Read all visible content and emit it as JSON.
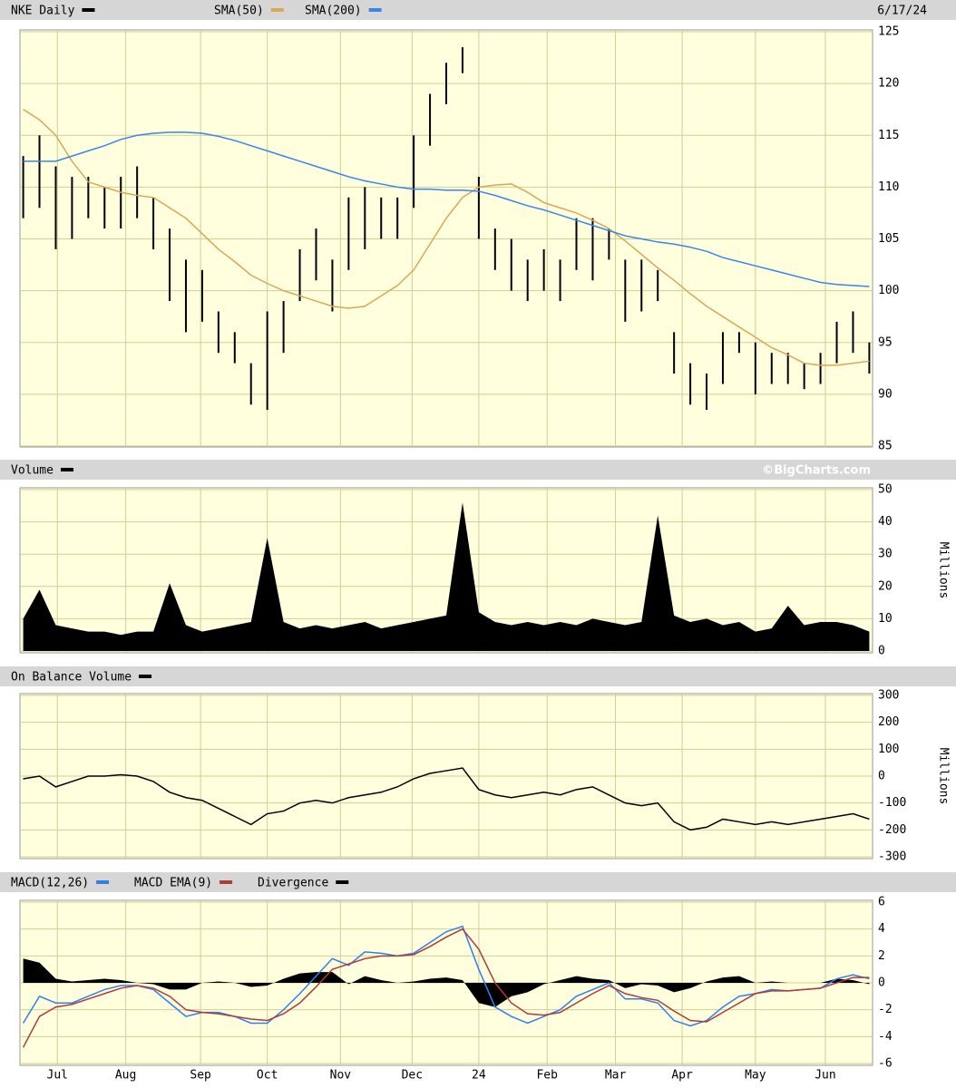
{
  "chart_data": [
    {
      "type": "ohlc",
      "title": "NKE Daily",
      "date": "6/17/24",
      "x": [
        0,
        1,
        2,
        3,
        4,
        5,
        6,
        7,
        8,
        9,
        10,
        11,
        12,
        13,
        14,
        15,
        16,
        17,
        18,
        19,
        20,
        21,
        22,
        23,
        24,
        25,
        26,
        27,
        28,
        29,
        30,
        31,
        32,
        33,
        34,
        35,
        36,
        37,
        38,
        39,
        40,
        41,
        42,
        43,
        44,
        45,
        46,
        47,
        48,
        49,
        50,
        51,
        52
      ],
      "xlim": [
        -0.2,
        52.2
      ],
      "ylim": [
        85,
        125
      ],
      "yticks": [
        85,
        90,
        95,
        100,
        105,
        110,
        115,
        120,
        125
      ],
      "grid": true,
      "series": [
        {
          "name": "NKE Daily",
          "color": "#000000",
          "high": [
            113,
            115,
            112,
            111,
            111,
            110,
            111,
            112,
            109,
            106,
            103,
            102,
            98,
            96,
            93,
            98,
            99,
            104,
            106,
            103,
            109,
            110,
            109,
            109,
            115,
            119,
            122,
            123.5,
            111,
            106,
            105,
            103,
            104,
            103,
            107,
            107,
            106,
            103,
            103,
            102,
            96,
            93,
            92,
            96,
            96,
            95,
            94,
            94,
            93,
            94,
            97,
            98,
            95
          ],
          "low": [
            107,
            108,
            104,
            105,
            107,
            106,
            106,
            107,
            104,
            99,
            96,
            97,
            94,
            93,
            89,
            88.5,
            94,
            99,
            101,
            98,
            102,
            104,
            105,
            105,
            108,
            114,
            118,
            121,
            105,
            102,
            100,
            99,
            100,
            99,
            102,
            101,
            103,
            97,
            98,
            99,
            92,
            89,
            88.5,
            91,
            94,
            90,
            91,
            91,
            90.5,
            91,
            93,
            94,
            92
          ]
        },
        {
          "name": "SMA(50)",
          "color": "#d9a75a",
          "values": [
            117.5,
            116.5,
            115,
            112.5,
            110.5,
            110,
            109.5,
            109.2,
            109,
            108,
            107,
            105.5,
            104,
            102.8,
            101.5,
            100.7,
            100,
            99.5,
            99,
            98.5,
            98.3,
            98.5,
            99.5,
            100.5,
            102,
            104.5,
            107,
            109,
            110,
            110.2,
            110.3,
            109.5,
            108.5,
            108,
            107.5,
            106.8,
            106,
            104.8,
            103.5,
            102.2,
            101,
            99.7,
            98.5,
            97.5,
            96.5,
            95.5,
            94.5,
            93.8,
            93,
            92.8,
            92.8,
            93,
            93.2
          ]
        },
        {
          "name": "SMA(200)",
          "color": "#3a86e8",
          "values": [
            112.5,
            112.5,
            112.5,
            113,
            113.5,
            114,
            114.6,
            115,
            115.2,
            115.3,
            115.3,
            115.2,
            114.9,
            114.5,
            114,
            113.5,
            113,
            112.5,
            112,
            111.5,
            111,
            110.6,
            110.3,
            110,
            109.8,
            109.8,
            109.7,
            109.7,
            109.6,
            109.2,
            108.7,
            108.2,
            107.8,
            107.3,
            106.8,
            106.3,
            105.8,
            105.3,
            105,
            104.7,
            104.5,
            104.2,
            103.8,
            103.2,
            102.8,
            102.4,
            102,
            101.6,
            101.2,
            100.8,
            100.6,
            100.5,
            100.4
          ]
        }
      ]
    },
    {
      "type": "area",
      "source": "©BigCharts.com",
      "ylabel": "Millions",
      "x": [
        0,
        1,
        2,
        3,
        4,
        5,
        6,
        7,
        8,
        9,
        10,
        11,
        12,
        13,
        14,
        15,
        16,
        17,
        18,
        19,
        20,
        21,
        22,
        23,
        24,
        25,
        26,
        27,
        28,
        29,
        30,
        31,
        32,
        33,
        34,
        35,
        36,
        37,
        38,
        39,
        40,
        41,
        42,
        43,
        44,
        45,
        46,
        47,
        48,
        49,
        50,
        51,
        52
      ],
      "xlim": [
        -0.2,
        52.2
      ],
      "ylim": [
        0,
        50
      ],
      "yticks": [
        0,
        10,
        20,
        30,
        40,
        50
      ],
      "grid": true,
      "series": [
        {
          "name": "Volume",
          "color": "#000000",
          "values": [
            10,
            19,
            8,
            7,
            6,
            6,
            5,
            6,
            6,
            21,
            8,
            6,
            7,
            8,
            9,
            35,
            9,
            7,
            8,
            7,
            8,
            9,
            7,
            8,
            9,
            10,
            11,
            46,
            12,
            9,
            8,
            9,
            8,
            9,
            8,
            10,
            9,
            8,
            9,
            42,
            11,
            9,
            10,
            8,
            9,
            6,
            7,
            14,
            8,
            9,
            9,
            8,
            6
          ]
        }
      ]
    },
    {
      "type": "line",
      "ylabel": "Millions",
      "x": [
        0,
        1,
        2,
        3,
        4,
        5,
        6,
        7,
        8,
        9,
        10,
        11,
        12,
        13,
        14,
        15,
        16,
        17,
        18,
        19,
        20,
        21,
        22,
        23,
        24,
        25,
        26,
        27,
        28,
        29,
        30,
        31,
        32,
        33,
        34,
        35,
        36,
        37,
        38,
        39,
        40,
        41,
        42,
        43,
        44,
        45,
        46,
        47,
        48,
        49,
        50,
        51,
        52
      ],
      "xlim": [
        -0.2,
        52.2
      ],
      "ylim": [
        -300,
        300
      ],
      "yticks": [
        -300,
        -200,
        -100,
        0,
        100,
        200,
        300
      ],
      "grid": true,
      "series": [
        {
          "name": "On Balance Volume",
          "color": "#000000",
          "values": [
            -10,
            0,
            -40,
            -20,
            0,
            0,
            5,
            0,
            -20,
            -60,
            -80,
            -90,
            -120,
            -150,
            -180,
            -140,
            -130,
            -100,
            -90,
            -100,
            -80,
            -70,
            -60,
            -40,
            -10,
            10,
            20,
            30,
            -50,
            -70,
            -80,
            -70,
            -60,
            -70,
            -50,
            -40,
            -70,
            -100,
            -110,
            -100,
            -170,
            -200,
            -190,
            -160,
            -170,
            -180,
            -170,
            -180,
            -170,
            -160,
            -150,
            -140,
            -160
          ]
        }
      ]
    },
    {
      "type": "line",
      "x": [
        0,
        1,
        2,
        3,
        4,
        5,
        6,
        7,
        8,
        9,
        10,
        11,
        12,
        13,
        14,
        15,
        16,
        17,
        18,
        19,
        20,
        21,
        22,
        23,
        24,
        25,
        26,
        27,
        28,
        29,
        30,
        31,
        32,
        33,
        34,
        35,
        36,
        37,
        38,
        39,
        40,
        41,
        42,
        43,
        44,
        45,
        46,
        47,
        48,
        49,
        50,
        51,
        52
      ],
      "xlim": [
        -0.2,
        52.2
      ],
      "ylim": [
        -6,
        6
      ],
      "yticks": [
        -6,
        -4,
        -2,
        0,
        2,
        4,
        6
      ],
      "grid": true,
      "xticks": [
        {
          "value": 2.1,
          "label": "Jul"
        },
        {
          "value": 6.3,
          "label": "Aug"
        },
        {
          "value": 10.9,
          "label": "Sep"
        },
        {
          "value": 15,
          "label": "Oct"
        },
        {
          "value": 19.5,
          "label": "Nov"
        },
        {
          "value": 23.9,
          "label": "Dec"
        },
        {
          "value": 28,
          "label": "24"
        },
        {
          "value": 32.2,
          "label": "Feb"
        },
        {
          "value": 36.4,
          "label": "Mar"
        },
        {
          "value": 40.5,
          "label": "Apr"
        },
        {
          "value": 45,
          "label": "May"
        },
        {
          "value": 49.3,
          "label": "Jun"
        }
      ],
      "series": [
        {
          "name": "MACD(12,26)",
          "color": "#2f80ed",
          "values": [
            -3,
            -1,
            -1.5,
            -1.5,
            -1,
            -0.5,
            -0.2,
            -0.2,
            -0.5,
            -1.5,
            -2.5,
            -2.2,
            -2.2,
            -2.5,
            -3,
            -3,
            -2,
            -0.8,
            0.5,
            1.8,
            1.3,
            2.3,
            2.2,
            2,
            2.2,
            3,
            3.8,
            4.2,
            1,
            -1.8,
            -2.5,
            -3,
            -2.5,
            -2,
            -1,
            -0.5,
            0,
            -1.2,
            -1.2,
            -1.5,
            -2.8,
            -3.2,
            -2.8,
            -1.8,
            -1,
            -0.8,
            -0.5,
            -0.6,
            -0.5,
            -0.4,
            0.3,
            0.6,
            0.3
          ]
        },
        {
          "name": "MACD EMA(9)",
          "color": "#b03a3a",
          "values": [
            -4.8,
            -2.5,
            -1.8,
            -1.6,
            -1.2,
            -0.8,
            -0.4,
            -0.2,
            -0.4,
            -1,
            -2,
            -2.2,
            -2.3,
            -2.5,
            -2.7,
            -2.8,
            -2.3,
            -1.5,
            -0.3,
            1,
            1.4,
            1.8,
            2,
            2,
            2.1,
            2.7,
            3.4,
            4,
            2.5,
            0,
            -1.5,
            -2.3,
            -2.4,
            -2.2,
            -1.5,
            -0.8,
            -0.2,
            -0.8,
            -1.1,
            -1.3,
            -2.1,
            -2.8,
            -2.9,
            -2.2,
            -1.5,
            -0.8,
            -0.6,
            -0.6,
            -0.5,
            -0.4,
            0,
            0.4,
            0.4
          ]
        },
        {
          "name": "Divergence",
          "color": "#000000",
          "fill": true,
          "values": [
            1.8,
            1.5,
            0.3,
            0.1,
            0.2,
            0.3,
            0.2,
            0,
            -0.1,
            -0.5,
            -0.5,
            0,
            0.1,
            0,
            -0.3,
            -0.2,
            0.3,
            0.7,
            0.8,
            0.8,
            -0.1,
            0.5,
            0.2,
            0,
            0.1,
            0.3,
            0.4,
            0.2,
            -1.5,
            -1.8,
            -1,
            -0.7,
            -0.1,
            0.2,
            0.5,
            0.3,
            0.2,
            -0.4,
            -0.1,
            -0.2,
            -0.7,
            -0.4,
            0.1,
            0.4,
            0.5,
            0,
            0.1,
            0,
            0,
            0,
            0.3,
            0.2,
            -0.1
          ]
        }
      ]
    }
  ]
}
